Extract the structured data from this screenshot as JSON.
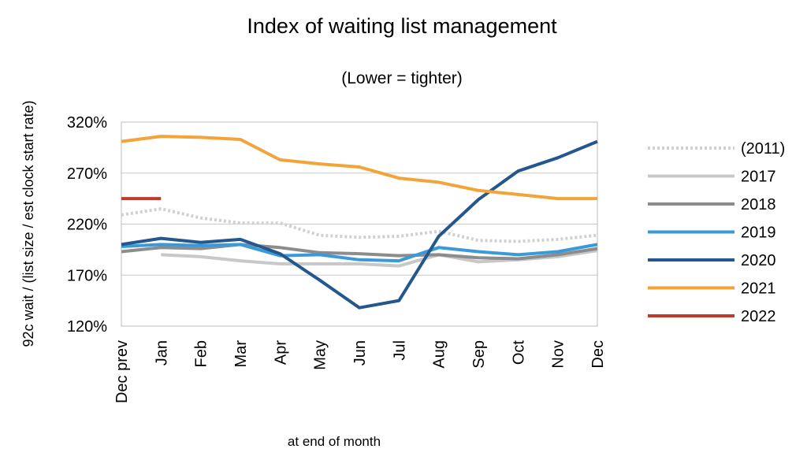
{
  "chart_data": {
    "type": "line",
    "title": "Index of waiting list management",
    "subtitle": "(Lower = tighter)",
    "xlabel": "at end of month",
    "ylabel": "92c wait / (list size / est clock start rate)",
    "ylim": [
      120,
      320
    ],
    "yticks": [
      "120%",
      "170%",
      "220%",
      "270%",
      "320%"
    ],
    "ytick_values": [
      120,
      170,
      220,
      270,
      320
    ],
    "categories": [
      "Dec prev",
      "Jan",
      "Feb",
      "Mar",
      "Apr",
      "May",
      "Jun",
      "Jul",
      "Aug",
      "Sep",
      "Oct",
      "Nov",
      "Dec"
    ],
    "grid": "horizontal",
    "legend": "right",
    "series": [
      {
        "name": "(2011)",
        "color": "#d0d0d0",
        "style": "dotted",
        "values": [
          229,
          235,
          226,
          221,
          221,
          209,
          207,
          208,
          213,
          204,
          203,
          205,
          209
        ]
      },
      {
        "name": "2017",
        "color": "#c8c8c8",
        "style": "solid",
        "values": [
          null,
          190,
          188,
          184,
          181,
          181,
          181,
          179,
          190,
          183,
          185,
          188,
          194
        ]
      },
      {
        "name": "2018",
        "color": "#8c8c8c",
        "style": "solid",
        "values": [
          193,
          197,
          196,
          200,
          197,
          192,
          191,
          189,
          190,
          187,
          186,
          190,
          196
        ]
      },
      {
        "name": "2019",
        "color": "#3a9ad9",
        "style": "solid",
        "values": [
          198,
          200,
          199,
          200,
          189,
          190,
          185,
          184,
          197,
          193,
          190,
          193,
          200
        ]
      },
      {
        "name": "2020",
        "color": "#23578e",
        "style": "solid",
        "values": [
          200,
          206,
          202,
          205,
          191,
          165,
          138,
          145,
          208,
          244,
          272,
          285,
          301
        ]
      },
      {
        "name": "2021",
        "color": "#f2a43a",
        "style": "solid",
        "values": [
          301,
          306,
          305,
          303,
          283,
          279,
          276,
          265,
          261,
          253,
          249,
          245,
          245
        ]
      },
      {
        "name": "2022",
        "color": "#c0392b",
        "style": "solid",
        "values": [
          245,
          245,
          null,
          null,
          null,
          null,
          null,
          null,
          null,
          null,
          null,
          null,
          null
        ]
      }
    ]
  }
}
